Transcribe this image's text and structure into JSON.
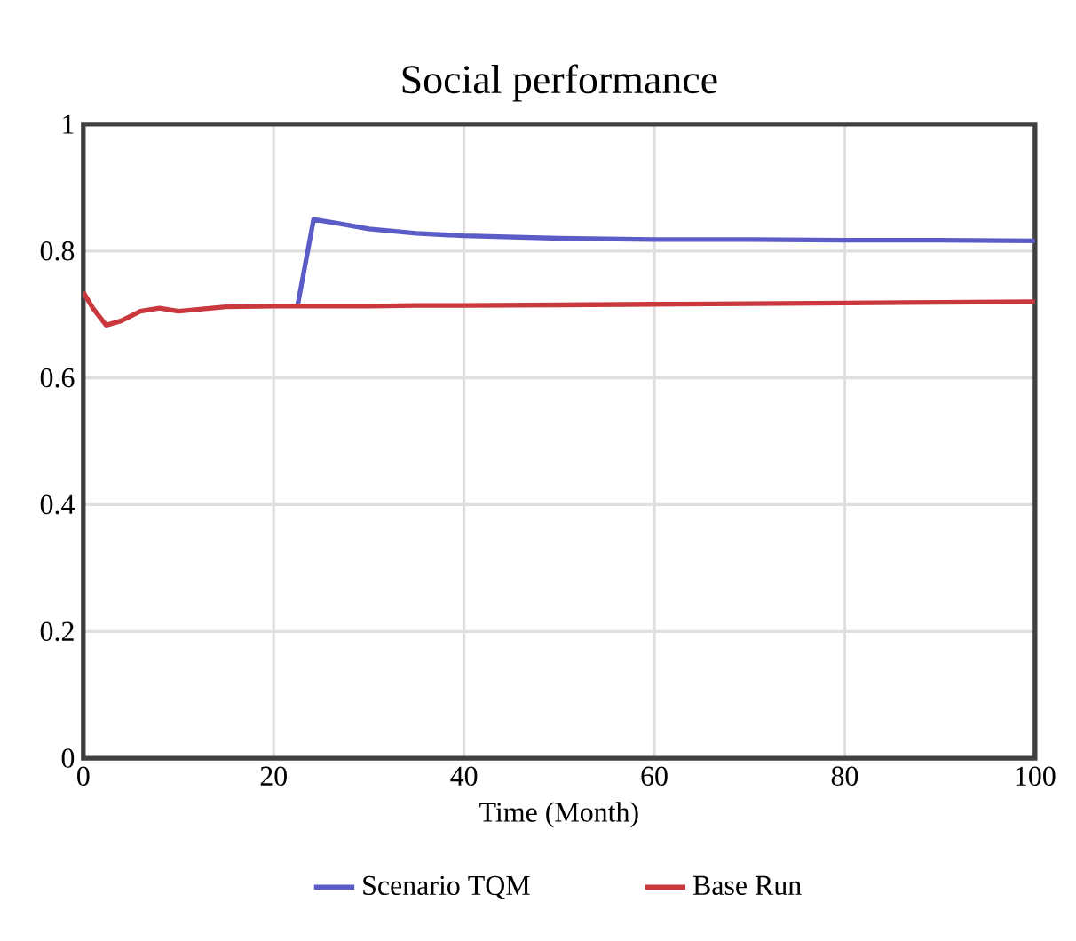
{
  "chart_data": {
    "type": "line",
    "title": "Social performance",
    "xlabel": "Time (Month)",
    "xlim": [
      0,
      100
    ],
    "ylim": [
      0,
      1
    ],
    "xticks": [
      0,
      20,
      40,
      60,
      80,
      100
    ],
    "yticks": [
      0,
      0.2,
      0.4,
      0.6,
      0.8,
      1
    ],
    "grid": true,
    "legend": "bottom",
    "marker": "none",
    "series": [
      {
        "name": "Scenario TQM",
        "color": "#5c5cc8",
        "x": [
          22.5,
          24.2,
          27,
          30,
          35,
          40,
          50,
          60,
          70,
          80,
          90,
          100
        ],
        "values": [
          0.713,
          0.85,
          0.843,
          0.835,
          0.828,
          0.824,
          0.82,
          0.818,
          0.818,
          0.817,
          0.817,
          0.816
        ]
      },
      {
        "name": "Base Run",
        "color": "#c8383c",
        "x": [
          0,
          1,
          2.4,
          4,
          6,
          8,
          10,
          15,
          20,
          22.5,
          24.2,
          27,
          30,
          35,
          40,
          50,
          60,
          70,
          80,
          90,
          100
        ],
        "values": [
          0.735,
          0.71,
          0.683,
          0.69,
          0.705,
          0.71,
          0.705,
          0.712,
          0.713,
          0.713,
          0.713,
          0.713,
          0.713,
          0.714,
          0.714,
          0.715,
          0.716,
          0.717,
          0.718,
          0.719,
          0.72
        ]
      }
    ]
  }
}
